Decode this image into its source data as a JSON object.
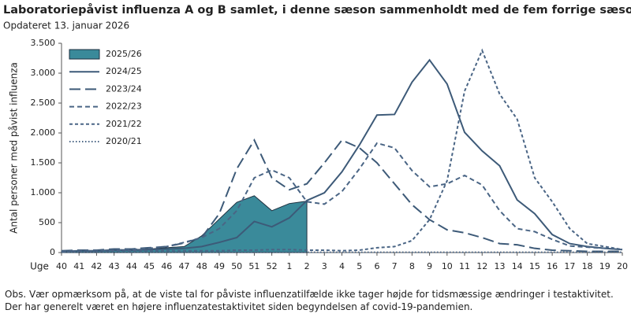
{
  "chart_data": {
    "type": "line",
    "title": "Laboratoriepåvist influenza A og B samlet, i denne sæson sammenholdt med de fem forrige sæsoner",
    "subtitle": "Opdateret 13. januar 2026",
    "y_label": "Antal personer med påvist influenza",
    "x_label": "Uge",
    "note": "Obs. Vær opmærksom på, at de viste tal for påviste influenzatilfælde ikke tager højde for tidsmæssige ændringer i testaktivitet. Der har generelt været en højere influenzatestaktivitet siden begyndelsen af covid-19-pandemien.",
    "categories": [
      "40",
      "41",
      "42",
      "43",
      "44",
      "45",
      "46",
      "47",
      "48",
      "49",
      "50",
      "51",
      "52",
      "1",
      "2",
      "3",
      "4",
      "5",
      "6",
      "7",
      "8",
      "9",
      "10",
      "11",
      "12",
      "13",
      "14",
      "15",
      "16",
      "17",
      "18",
      "19",
      "20"
    ],
    "ylim": [
      0,
      3500
    ],
    "yticks": [
      0,
      500,
      {
        "value": 1000,
        "label": "1.000"
      },
      {
        "value": 1500,
        "label": "1.500"
      },
      {
        "value": 2000,
        "label": "2.000"
      },
      {
        "value": 2500,
        "label": "2.500"
      },
      {
        "value": 3000,
        "label": "3.000"
      },
      {
        "value": 3500,
        "label": "3.500"
      }
    ],
    "legend_position": "upper left",
    "series": [
      {
        "name": "2025/26",
        "style": "area",
        "color": "#3a8a9a",
        "values": [
          20,
          30,
          35,
          50,
          50,
          60,
          80,
          100,
          280,
          560,
          840,
          950,
          700,
          820,
          860,
          null,
          null,
          null,
          null,
          null,
          null,
          null,
          null,
          null,
          null,
          null,
          null,
          null,
          null,
          null,
          null,
          null,
          null
        ]
      },
      {
        "name": "2024/25",
        "style": "solid",
        "color": "#3d5a78",
        "values": [
          20,
          30,
          30,
          40,
          40,
          50,
          60,
          70,
          100,
          170,
          250,
          520,
          430,
          580,
          870,
          1000,
          1350,
          1800,
          2300,
          2310,
          2850,
          3220,
          2820,
          2010,
          1700,
          1450,
          880,
          650,
          300,
          150,
          100,
          70,
          50
        ]
      },
      {
        "name": "2023/24",
        "style": "long-dash",
        "color": "#3d5a78",
        "values": [
          30,
          40,
          40,
          60,
          60,
          80,
          100,
          160,
          250,
          650,
          1400,
          1880,
          1250,
          1050,
          1150,
          1500,
          1880,
          1750,
          1500,
          1150,
          800,
          550,
          380,
          330,
          250,
          150,
          130,
          70,
          40,
          30,
          20,
          20,
          20
        ]
      },
      {
        "name": "2022/23",
        "style": "dash",
        "color": "#4a6585",
        "values": [
          20,
          30,
          30,
          40,
          50,
          70,
          100,
          170,
          250,
          400,
          700,
          1250,
          1380,
          1250,
          850,
          810,
          1020,
          1400,
          1830,
          1750,
          1370,
          1100,
          1150,
          1290,
          1130,
          700,
          400,
          350,
          220,
          110,
          90,
          70,
          50
        ]
      },
      {
        "name": "2021/22",
        "style": "short-dash",
        "color": "#4a6585",
        "values": [
          10,
          20,
          20,
          30,
          30,
          30,
          30,
          30,
          30,
          30,
          40,
          40,
          50,
          50,
          40,
          40,
          30,
          40,
          80,
          100,
          200,
          550,
          1200,
          2700,
          3380,
          2650,
          2230,
          1250,
          850,
          400,
          150,
          100,
          50
        ]
      },
      {
        "name": "2020/21",
        "style": "dotted",
        "color": "#4a6585",
        "values": [
          5,
          5,
          5,
          5,
          5,
          5,
          5,
          5,
          5,
          5,
          5,
          5,
          5,
          5,
          5,
          5,
          5,
          5,
          5,
          5,
          5,
          5,
          5,
          5,
          5,
          5,
          5,
          5,
          5,
          5,
          5,
          5,
          5
        ]
      }
    ]
  }
}
